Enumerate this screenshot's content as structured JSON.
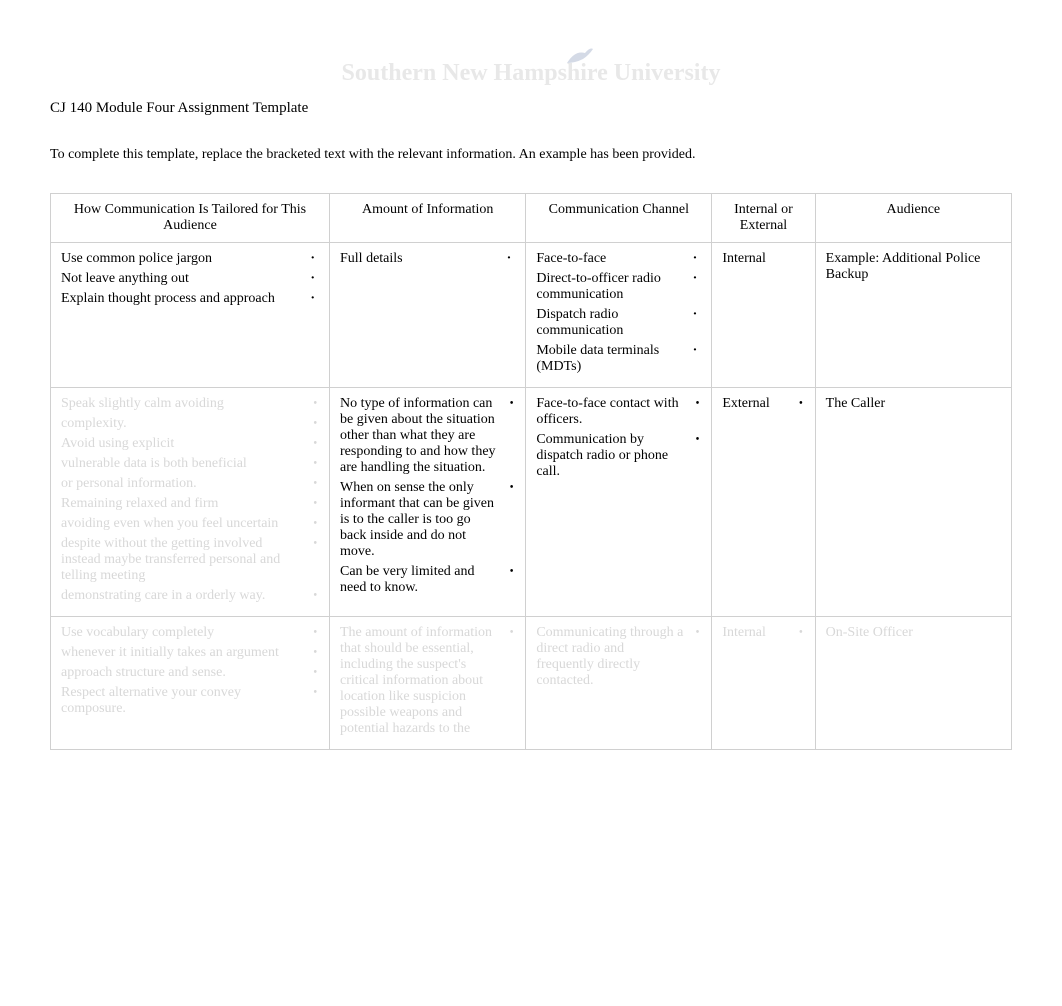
{
  "watermark": "Southern New Hampshire University",
  "title": "CJ 140 Module Four Assignment Template",
  "instruction": "To complete this template, replace the bracketed text with the relevant information. An example has been provided.",
  "headers": {
    "audience": "Audience",
    "internal": "Internal or External",
    "channel": "Communication Channel",
    "amount": "Amount of Information",
    "tailored": "How Communication Is Tailored for This Audience"
  },
  "rows": [
    {
      "audience": "Example: Additional Police Backup",
      "internal": "Internal",
      "channel": [
        "Face-to-face",
        "Direct-to-officer radio communication",
        "Dispatch radio communication",
        "Mobile data terminals (MDTs)"
      ],
      "amount": [
        "Full details"
      ],
      "tailored": [
        "Use common police jargon",
        "Not leave anything out",
        "Explain thought process and approach"
      ],
      "faded": false,
      "bullet_style": "dot"
    },
    {
      "audience": "The Caller",
      "internal": "External",
      "channel": [
        "Face-to-face contact with officers.",
        "Communication by dispatch radio or phone call."
      ],
      "amount": [
        "No type of information can be given about the situation other than what they are responding to and how they are handling the situation.",
        "When on sense the only informant that can be given is to the caller is too go back inside and do not move.",
        "Can be very limited and need to know."
      ],
      "tailored": [
        "Speak slightly calm avoiding ",
        "complexity.",
        "Avoid using explicit ",
        "vulnerable data is both beneficial ",
        "or personal information.",
        "Remaining relaxed and firm ",
        "avoiding even when you feel uncertain ",
        "despite without the  getting involved instead maybe transferred personal and telling meeting ",
        "demonstrating care in a orderly way."
      ],
      "faded": false,
      "tailored_faded": true,
      "bullet_style": "bullet"
    },
    {
      "audience": "On-Site Officer",
      "internal": "Internal",
      "channel": [
        "Communicating through a direct  radio  and frequently directly  contacted."
      ],
      "amount": [
        "The amount of information that should be  essential, including the suspect's critical information about location like suspicion possible weapons  and potential hazards to the "
      ],
      "tailored": [
        "Use vocabulary completely ",
        "whenever it initially takes an argument ",
        "approach structure and sense.",
        "Respect alternative your convey composure. "
      ],
      "faded": true,
      "bullet_style": "bullet"
    }
  ],
  "styling": {
    "font_family": "Times New Roman",
    "font_size_body": 14,
    "font_size_title": 15,
    "border_color": "#d0d0d0",
    "faded_color": "#d8d8d8",
    "text_color": "#000000",
    "background": "#ffffff",
    "watermark_color": "#e8e8e8"
  }
}
